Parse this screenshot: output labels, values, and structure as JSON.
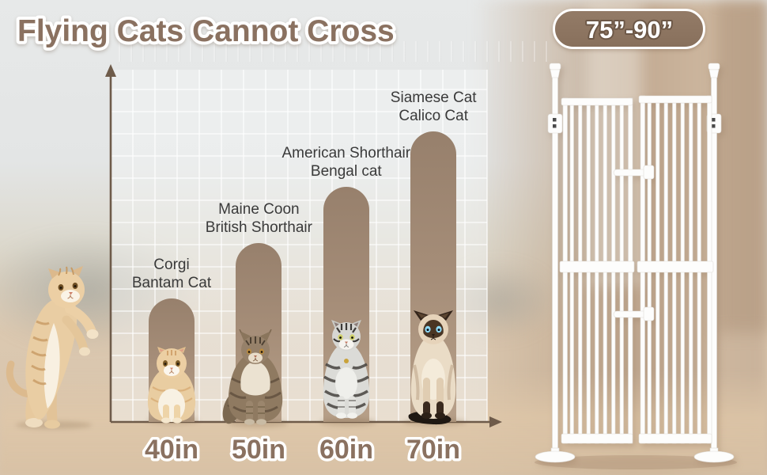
{
  "title": "Flying Cats Cannot Cross",
  "badge": {
    "text": "75”-90”"
  },
  "colors": {
    "title_brown": "#8a7160",
    "badge_fill": "#88705c",
    "bar_gradient_top": "#97806c",
    "bar_gradient_bottom": "#b7a089",
    "axis_brown": "#6e5b4a",
    "breed_label_text": "#3a3a3a",
    "gate_white": "#fdfdfc"
  },
  "chart_data": {
    "type": "bar",
    "title": "Flying Cats Cannot Cross",
    "categories": [
      "40in",
      "50in",
      "60in",
      "70in"
    ],
    "values": [
      40,
      50,
      60,
      70
    ],
    "xlabel": "",
    "ylabel": "",
    "grid": true,
    "legend": "none",
    "bars": [
      {
        "category": "40in",
        "breeds": [
          "Corgi",
          "Bantam Cat"
        ]
      },
      {
        "category": "50in",
        "breeds": [
          "Maine Coon",
          "British Shorthair"
        ]
      },
      {
        "category": "60in",
        "breeds": [
          "American Shorthair",
          "Bengal cat"
        ]
      },
      {
        "category": "70in",
        "breeds": [
          "Siamese Cat",
          "Calico Cat"
        ]
      }
    ]
  }
}
